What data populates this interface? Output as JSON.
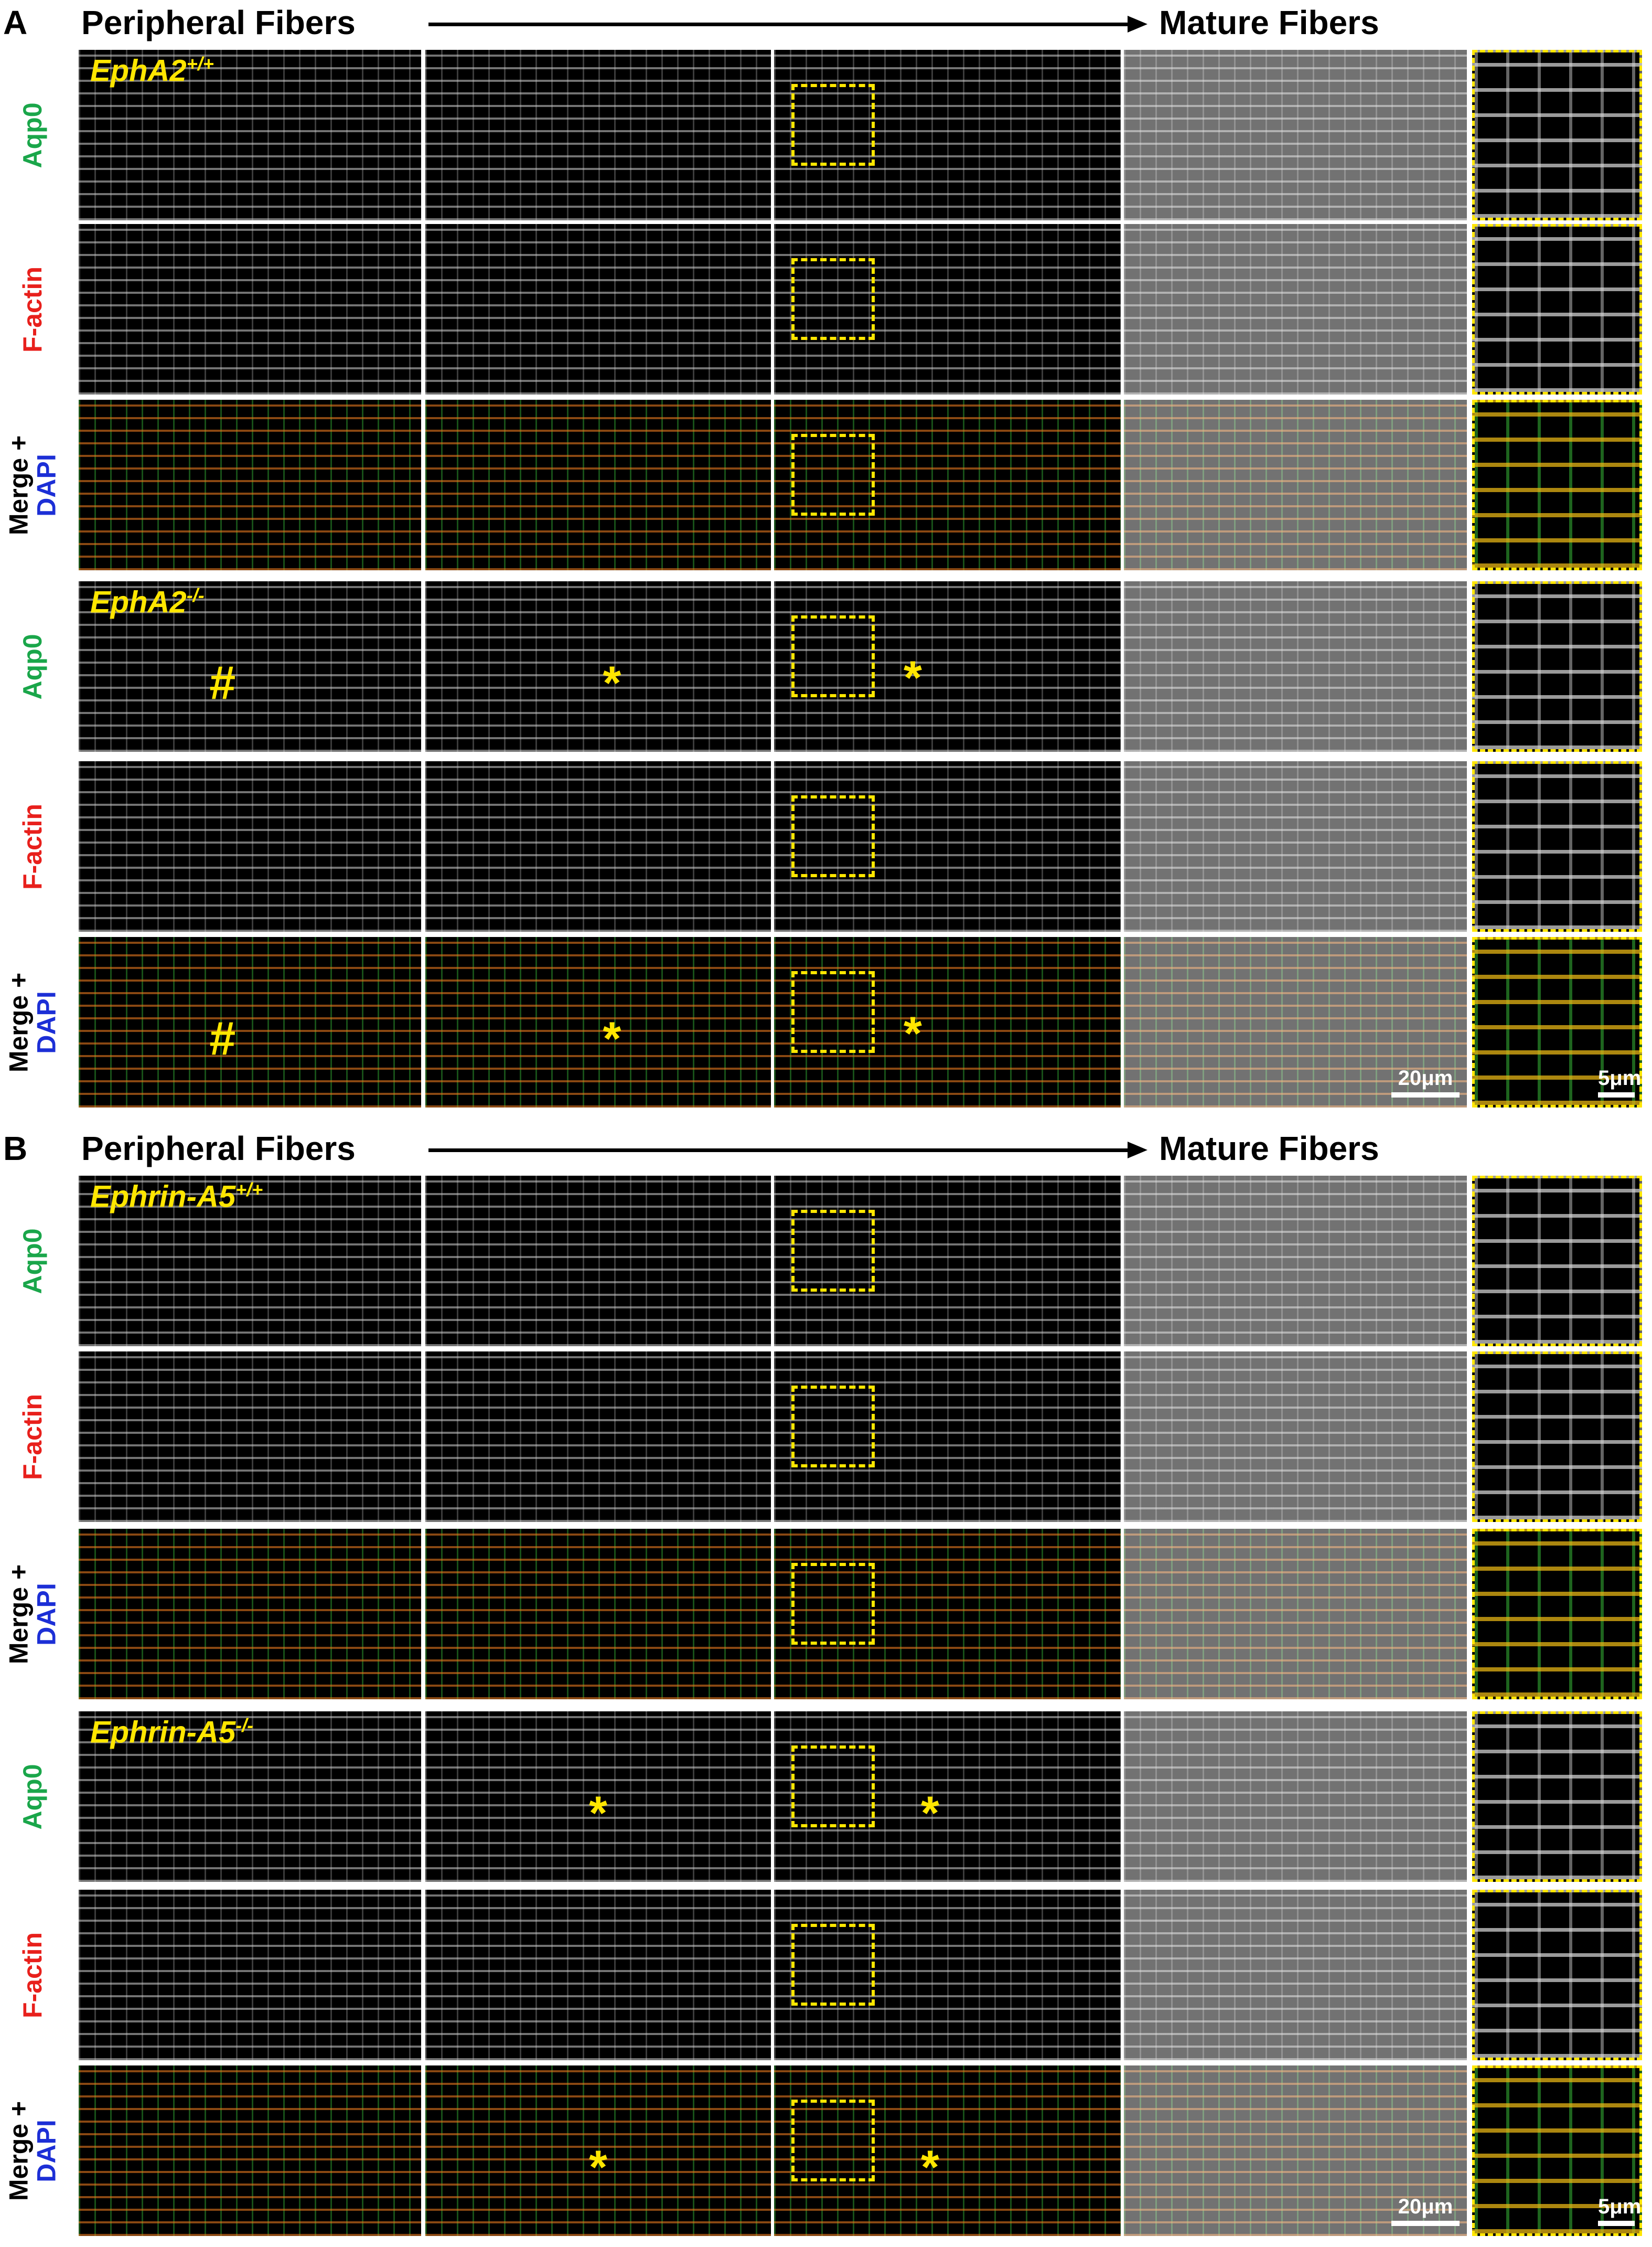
{
  "panels": [
    {
      "letter": "A",
      "header": {
        "start": "Peripheral Fibers",
        "end": "Mature Fibers"
      },
      "groups": [
        {
          "genotype": {
            "name": "EphA2",
            "superscript": "+/+"
          },
          "rows": [
            {
              "channel": [
                "Aqp0"
              ]
            },
            {
              "channel": [
                "F-actin"
              ]
            },
            {
              "channel": [
                "Merge +",
                "DAPI"
              ]
            }
          ]
        },
        {
          "genotype": {
            "name": "EphA2",
            "superscript": "-/-"
          },
          "rows": [
            {
              "channel": [
                "Aqp0"
              ],
              "marks": [
                "#",
                "*",
                "*"
              ]
            },
            {
              "channel": [
                "F-actin"
              ]
            },
            {
              "channel": [
                "Merge +",
                "DAPI"
              ],
              "marks": [
                "#",
                "*",
                "*"
              ],
              "scale_bars": [
                "20μm",
                "5μm"
              ]
            }
          ]
        }
      ]
    },
    {
      "letter": "B",
      "header": {
        "start": "Peripheral Fibers",
        "end": "Mature Fibers"
      },
      "groups": [
        {
          "genotype": {
            "name": "Ephrin-A5",
            "superscript": "+/+"
          },
          "rows": [
            {
              "channel": [
                "Aqp0"
              ]
            },
            {
              "channel": [
                "F-actin"
              ]
            },
            {
              "channel": [
                "Merge +",
                "DAPI"
              ]
            }
          ]
        },
        {
          "genotype": {
            "name": "Ephrin-A5",
            "superscript": "-/-"
          },
          "rows": [
            {
              "channel": [
                "Aqp0"
              ],
              "marks": [
                "*",
                "*"
              ]
            },
            {
              "channel": [
                "F-actin"
              ]
            },
            {
              "channel": [
                "Merge +",
                "DAPI"
              ],
              "marks": [
                "*",
                "*"
              ],
              "scale_bars": [
                "20μm",
                "5μm"
              ]
            }
          ]
        }
      ]
    }
  ]
}
